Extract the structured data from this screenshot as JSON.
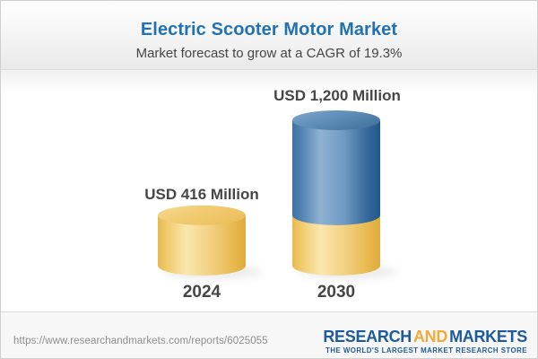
{
  "chart_data": {
    "type": "bar",
    "subtype": "3d-cylinder-stacked",
    "title": "Electric Scooter Motor Market",
    "subtitle": "Market forecast to grow at a CAGR of 19.3%",
    "cagr_percent": 19.3,
    "unit": "USD Million",
    "categories": [
      "2024",
      "2030"
    ],
    "values": [
      416,
      1200
    ],
    "ylim": [
      0,
      1200
    ],
    "grid": false,
    "legend": false,
    "bars": [
      {
        "category": "2024",
        "total": 416,
        "label": "USD 416 Million",
        "segments": [
          {
            "name": "market-2024",
            "value": 416,
            "color": "gold"
          }
        ]
      },
      {
        "category": "2030",
        "total": 1200,
        "label": "USD 1,200 Million",
        "segments": [
          {
            "name": "market-2024-base",
            "value": 416,
            "color": "gold"
          },
          {
            "name": "growth-2024-2030",
            "value": 784,
            "color": "blue"
          }
        ]
      }
    ],
    "palette": {
      "gold": "#F0C45F",
      "blue": "#4679AB",
      "label_text": "#464646",
      "title_blue": "#2072B5"
    }
  },
  "footer": {
    "url": "https://www.researchandmarkets.com/reports/6025055",
    "logo": {
      "word1": "RESEARCH",
      "word2": "AND",
      "word3": "MARKETS",
      "tagline": "THE WORLD'S LARGEST MARKET RESEARCH STORE",
      "blue": "#1D5B9B",
      "gold": "#F0AC3A"
    }
  }
}
